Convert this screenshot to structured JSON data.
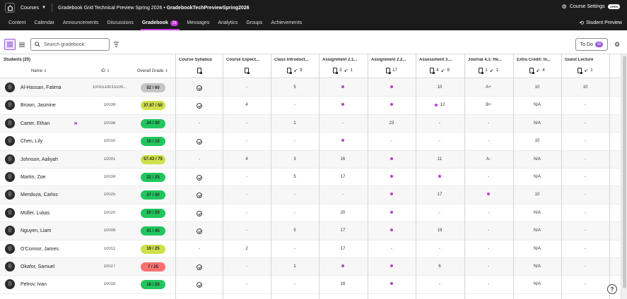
{
  "topbar": {
    "courses_label": "Courses",
    "course_title": "Gradebook Grid Technical Preview Spring 2026",
    "course_separator": " • ",
    "course_code": "GradebookTechPreviewSpring2026",
    "settings_label": "Course Settings",
    "open_badge": "OPEN"
  },
  "nav": {
    "items": [
      "Content",
      "Calendar",
      "Announcements",
      "Discussions",
      "Gradebook",
      "Messages",
      "Analytics",
      "Groups",
      "Achievements"
    ],
    "gradebook_badge": "25",
    "student_preview": "Student Preview"
  },
  "toolbar": {
    "search_placeholder": "Search gradebook",
    "todo_label": "To Do",
    "todo_count": "50"
  },
  "grid": {
    "students_label": "Students (20)",
    "name_header": "Name",
    "id_header": "ID",
    "overall_header": "Overall Grade",
    "columns": [
      {
        "title": "Course Syllabus",
        "icons": ""
      },
      {
        "title": "Course Expect...",
        "icons": ""
      },
      {
        "title": "Class Introduct...",
        "count": "9"
      },
      {
        "title": "Assignment 2.1...",
        "count_a": "3",
        "count_b": "1"
      },
      {
        "title": "Assignment 2.2...",
        "count_a": "17"
      },
      {
        "title": "Assessment 3....",
        "count_a": "4",
        "count_b": "9"
      },
      {
        "title": "Journal 4.1: Re...",
        "count_a": "1",
        "count_b": "1"
      },
      {
        "title": "Extra Credit: In...",
        "count": "4"
      },
      {
        "title": "Guest Lecture",
        "count": "1"
      }
    ],
    "rows": [
      {
        "name": "Al-Hassan, Fatima",
        "id": "1001510015100...",
        "grade": "52 / 60",
        "grade_color": "#c4c4c4",
        "flag": false,
        "cells": [
          "check",
          "-",
          "5",
          "dot",
          "dot",
          "10",
          "A+",
          "10",
          "10"
        ]
      },
      {
        "name": "Brown, Jasmine",
        "id": "10039",
        "grade": "37.87 / 50",
        "grade_color": "#cfe04a",
        "flag": false,
        "cells": [
          "check",
          "4",
          "-",
          "dot",
          "dot",
          "dot12",
          "B+",
          "N/A",
          "-"
        ]
      },
      {
        "name": "Carter, Ethan",
        "id": "10038",
        "grade": "24 / 30",
        "grade_color": "#22c55e",
        "flag": true,
        "cells": [
          "-",
          "-",
          "1",
          "-",
          "23",
          "-",
          "-",
          "N/A",
          "-"
        ]
      },
      {
        "name": "Chen, Lily",
        "id": "10010",
        "grade": "10 / 10",
        "grade_color": "#22c55e",
        "flag": false,
        "cells": [
          "check",
          "-",
          "-",
          "dot",
          "-",
          "-",
          "-",
          "10",
          "-"
        ]
      },
      {
        "name": "Johnson, Aaliyah",
        "id": "10001",
        "grade": "57.43 / 75",
        "grade_color": "#cfe04a",
        "flag": false,
        "cells": [
          "-",
          "4",
          "3",
          "16",
          "dot",
          "11",
          "A-",
          "N/A",
          "-"
        ]
      },
      {
        "name": "Martin, Zoe",
        "id": "10034",
        "grade": "22 / 25",
        "grade_color": "#22c55e",
        "flag": false,
        "cells": [
          "check",
          "-",
          "5",
          "17",
          "dot",
          "dot",
          "-",
          "N/A",
          "-"
        ]
      },
      {
        "name": "Mendoza, Carlos",
        "id": "10025",
        "grade": "27 / 30",
        "grade_color": "#22c55e",
        "flag": false,
        "cells": [
          "check",
          "-",
          "-",
          "-",
          "dot",
          "17",
          "dot",
          "10",
          "-"
        ]
      },
      {
        "name": "Müller, Lukas",
        "id": "10020",
        "grade": "20 / 20",
        "grade_color": "#22c55e",
        "flag": false,
        "cells": [
          "check",
          "-",
          "-",
          "20",
          "dot",
          "-",
          "-",
          "N/A",
          "-"
        ]
      },
      {
        "name": "Nguyen, Liam",
        "id": "10008",
        "grade": "41 / 45",
        "grade_color": "#22c55e",
        "flag": false,
        "cells": [
          "check",
          "-",
          "5",
          "17",
          "dot",
          "19",
          "-",
          "N/A",
          "-"
        ]
      },
      {
        "name": "O'Connor, James",
        "id": "10011",
        "grade": "19 / 25",
        "grade_color": "#cfe04a",
        "flag": false,
        "cells": [
          "-",
          "2",
          "-",
          "17",
          "-",
          "-",
          "-",
          "N/A",
          "-"
        ]
      },
      {
        "name": "Okafor, Samuel",
        "id": "10027",
        "grade": "7 / 25",
        "grade_color": "#f87171",
        "flag": false,
        "cells": [
          "check",
          "-",
          "1",
          "dot",
          "dot",
          "6",
          "-",
          "N/A",
          "-"
        ]
      },
      {
        "name": "Petrov, Ivan",
        "id": "10018",
        "grade": "16 / 20",
        "grade_color": "#22c55e",
        "flag": false,
        "cells": [
          "check",
          "-",
          "-",
          "16",
          "dot",
          "-",
          "-",
          "N/A",
          "-"
        ]
      }
    ]
  },
  "help_label": "?"
}
